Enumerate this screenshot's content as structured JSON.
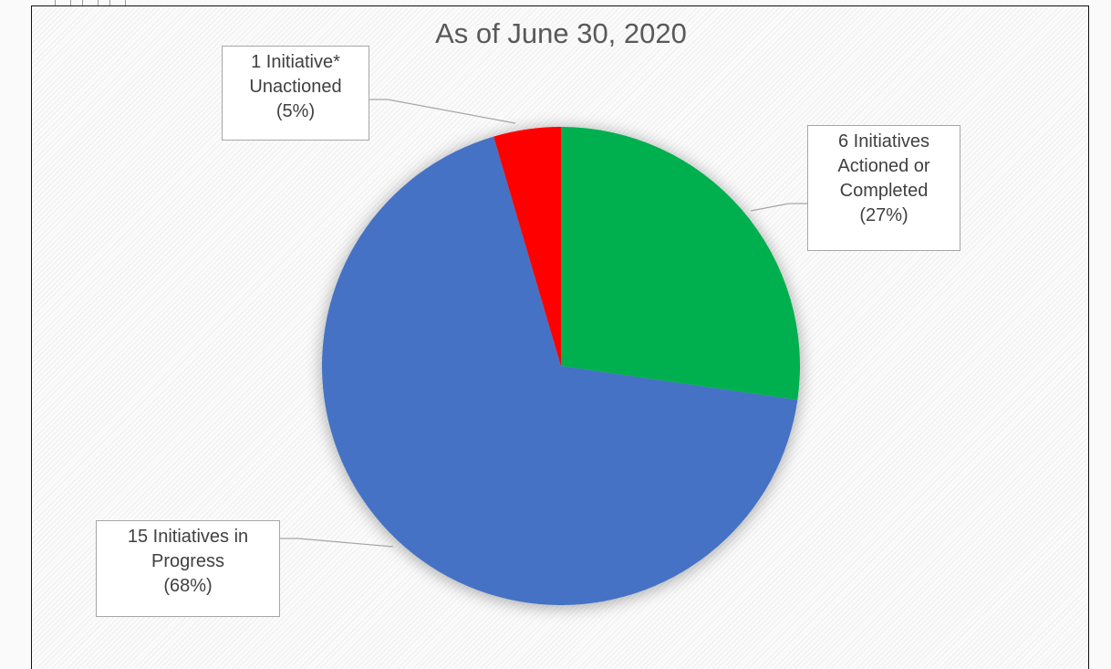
{
  "chart_data": {
    "type": "pie",
    "title": "As of June 30, 2020",
    "slices": [
      {
        "name": "Actioned or Completed",
        "value": 6,
        "percent": 27,
        "color": "#00b050",
        "label_lines": [
          "6 Initiatives",
          "Actioned or",
          "Completed",
          "(27%)"
        ]
      },
      {
        "name": "in Progress",
        "value": 15,
        "percent": 68,
        "color": "#4472c4",
        "label_lines": [
          "15 Initiatives in",
          "Progress",
          "(68%)"
        ]
      },
      {
        "name": "Unactioned",
        "value": 1,
        "percent": 5,
        "color": "#ff0000",
        "label_lines": [
          "1 Initiative*",
          "Unactioned",
          "(5%)"
        ]
      }
    ],
    "start_angle_deg": 0,
    "direction": "clockwise",
    "legend": "none"
  }
}
